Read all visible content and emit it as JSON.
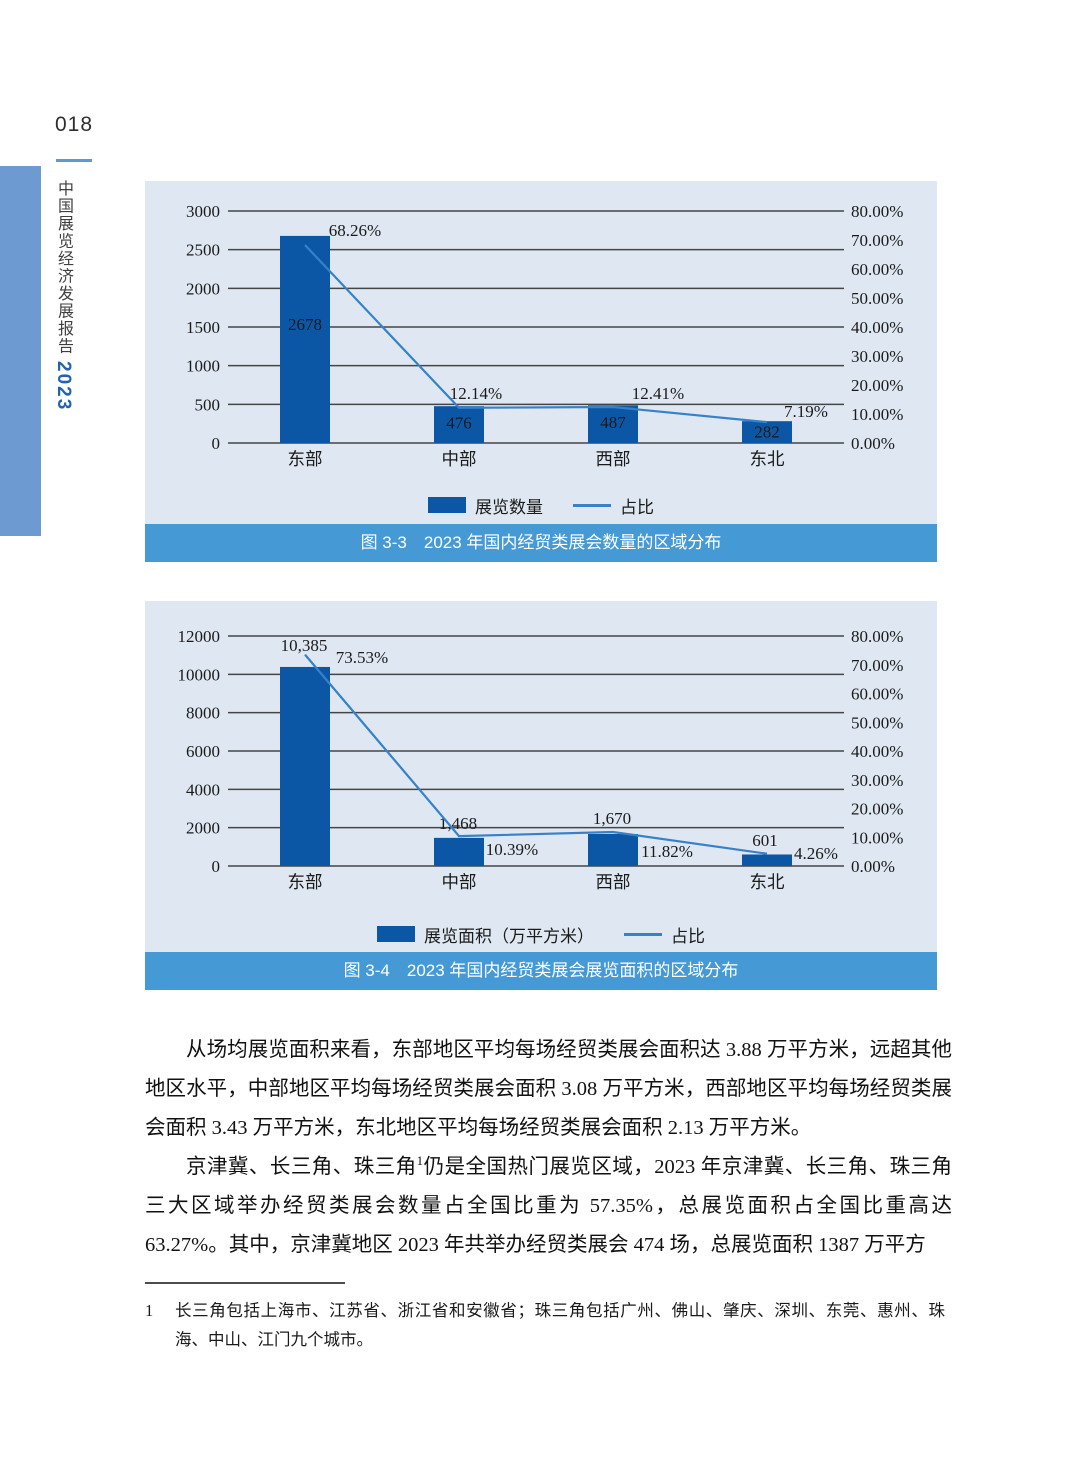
{
  "page": {
    "number": "018",
    "sidebar_title": "中国展览经济发展报告",
    "sidebar_year": "2023"
  },
  "colors": {
    "panel_background": "#dfe8f2",
    "bar_fill": "#0b57a6",
    "line_stroke": "#3781c8",
    "caption_background": "#459ad6",
    "sidebar_bar": "#6d9bd1",
    "page_number_rule": "#5b9bd5",
    "sidebar_year_blue": "#2363ae",
    "gridline": "#454545"
  },
  "chart_data": [
    {
      "type": "bar+line",
      "title": "图 3-3　2023 年国内经贸类展会数量的区域分布",
      "categories": [
        "东部",
        "中部",
        "西部",
        "东北"
      ],
      "series": [
        {
          "name": "展览数量",
          "kind": "bar",
          "axis": "left",
          "values": [
            2678,
            476,
            487,
            282
          ],
          "labels": [
            "2678",
            "476",
            "487",
            "282"
          ]
        },
        {
          "name": "占比",
          "kind": "line",
          "axis": "right",
          "values": [
            68.26,
            12.14,
            12.41,
            7.19
          ],
          "labels": [
            "68.26%",
            "12.14%",
            "12.41%",
            "7.19%"
          ]
        }
      ],
      "left_axis": {
        "min": 0,
        "max": 3000,
        "ticks": [
          0,
          500,
          1000,
          1500,
          2000,
          2500,
          3000
        ]
      },
      "right_axis": {
        "min": 0,
        "max": 80,
        "step": 10,
        "ticks": [
          "0.00%",
          "10.00%",
          "20.00%",
          "30.00%",
          "40.00%",
          "50.00%",
          "60.00%",
          "70.00%",
          "80.00%"
        ]
      },
      "grid": true,
      "legend_position": "bottom",
      "bar_label_position": "inside",
      "bar_label_color": "#ffffff"
    },
    {
      "type": "bar+line",
      "title": "图 3-4　2023 年国内经贸类展会展览面积的区域分布",
      "categories": [
        "东部",
        "中部",
        "西部",
        "东北"
      ],
      "series": [
        {
          "name": "展览面积（万平方米）",
          "kind": "bar",
          "axis": "left",
          "values": [
            10385,
            1468,
            1670,
            601
          ],
          "labels": [
            "10,385",
            "1,468",
            "1,670",
            "601"
          ]
        },
        {
          "name": "占比",
          "kind": "line",
          "axis": "right",
          "values": [
            73.53,
            10.39,
            11.82,
            4.26
          ],
          "labels": [
            "73.53%",
            "10.39%",
            "11.82%",
            "4.26%"
          ]
        }
      ],
      "left_axis": {
        "min": 0,
        "max": 12000,
        "ticks": [
          0,
          2000,
          4000,
          6000,
          8000,
          10000,
          12000
        ]
      },
      "right_axis": {
        "min": 0,
        "max": 80,
        "step": 10,
        "ticks": [
          "0.00%",
          "10.00%",
          "20.00%",
          "30.00%",
          "40.00%",
          "50.00%",
          "60.00%",
          "70.00%",
          "80.00%"
        ]
      },
      "grid": true,
      "legend_position": "bottom",
      "bar_label_position": "above",
      "bar_label_color": "#1a1a1a"
    }
  ],
  "body": {
    "paragraph_1": "从场均展览面积来看，东部地区平均每场经贸类展会面积达 3.88 万平方米，远超其他地区水平，中部地区平均每场经贸类展会面积 3.08 万平方米，西部地区平均每场经贸类展会面积 3.43 万平方米，东北地区平均每场经贸类展会面积 2.13 万平方米。",
    "paragraph_2_before_sup": "京津冀、长三角、珠三角",
    "paragraph_2_sup": "1",
    "paragraph_2_after_sup": "仍是全国热门展览区域，2023 年京津冀、长三角、珠三角三大区域举办经贸类展会数量占全国比重为 57.35%，总展览面积占全国比重高达 63.27%。其中，京津冀地区 2023 年共举办经贸类展会 474 场，总展览面积 1387 万平方"
  },
  "footnote": {
    "marker": "1",
    "text": "长三角包括上海市、江苏省、浙江省和安徽省；珠三角包括广州、佛山、肇庆、深圳、东莞、惠州、珠海、中山、江门九个城市。"
  }
}
